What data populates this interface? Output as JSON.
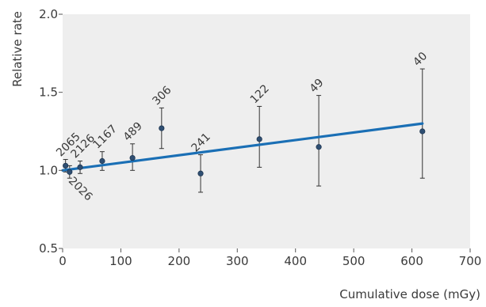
{
  "chart_data": {
    "type": "scatter",
    "title": "",
    "xlabel": "Cumulative dose (mGy)",
    "ylabel": "Relative rate",
    "xlim": [
      0,
      700
    ],
    "ylim": [
      0.5,
      2.0
    ],
    "xticks": [
      0,
      100,
      200,
      300,
      400,
      500,
      600,
      700
    ],
    "yticks": [
      0.5,
      1.0,
      1.5,
      2.0
    ],
    "x_tick_labels": [
      "0",
      "100",
      "200",
      "300",
      "400",
      "500",
      "600",
      "700"
    ],
    "y_tick_labels": [
      "0.5",
      "1.0",
      "1.5",
      "2.0"
    ],
    "grid": "none",
    "plot_background": "#eeeeee",
    "point_color": "#2f4f73",
    "errorbar_color": "#333333",
    "fit_color": "#1a6fb5",
    "points": [
      {
        "x": 5,
        "y": 1.03,
        "lower": 0.99,
        "upper": 1.07,
        "label": "2065",
        "label_pos": "above"
      },
      {
        "x": 12,
        "y": 0.99,
        "lower": 0.95,
        "upper": 1.03,
        "label": "2026",
        "label_pos": "below"
      },
      {
        "x": 30,
        "y": 1.02,
        "lower": 0.98,
        "upper": 1.06,
        "label": "2126",
        "label_pos": "above"
      },
      {
        "x": 68,
        "y": 1.06,
        "lower": 1.0,
        "upper": 1.12,
        "label": "1167",
        "label_pos": "above"
      },
      {
        "x": 120,
        "y": 1.08,
        "lower": 1.0,
        "upper": 1.17,
        "label": "489",
        "label_pos": "above"
      },
      {
        "x": 170,
        "y": 1.27,
        "lower": 1.14,
        "upper": 1.4,
        "label": "306",
        "label_pos": "above"
      },
      {
        "x": 237,
        "y": 0.98,
        "lower": 0.86,
        "upper": 1.1,
        "label": "241",
        "label_pos": "above"
      },
      {
        "x": 338,
        "y": 1.2,
        "lower": 1.02,
        "upper": 1.41,
        "label": "122",
        "label_pos": "above"
      },
      {
        "x": 440,
        "y": 1.15,
        "lower": 0.9,
        "upper": 1.48,
        "label": "49",
        "label_pos": "above"
      },
      {
        "x": 618,
        "y": 1.25,
        "lower": 0.95,
        "upper": 1.65,
        "label": "40",
        "label_pos": "above"
      }
    ],
    "fit_line": {
      "x": [
        0,
        618
      ],
      "y": [
        1.0,
        1.3
      ]
    }
  }
}
